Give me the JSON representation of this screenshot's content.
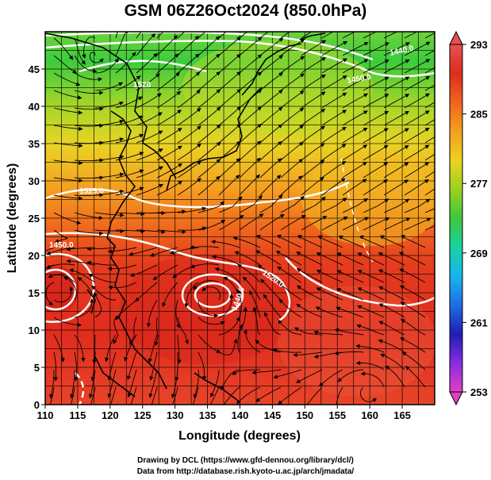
{
  "title": "GSM 06Z26Oct2024 (850.0hPa)",
  "credits": {
    "line1": "Drawing by DCL (https://www.gfd-dennou.org/library/dcl/)",
    "line2": "Data from http://database.rish.kyoto-u.ac.jp/arch/jmadata/"
  },
  "chart_data": {
    "type": "heatmap",
    "xlabel": "Longitude (degrees)",
    "ylabel": "Latitude  (degrees)",
    "xlim": [
      110,
      170
    ],
    "ylim": [
      0,
      50
    ],
    "x_ticks": [
      110,
      115,
      120,
      125,
      130,
      135,
      140,
      145,
      150,
      155,
      160,
      165
    ],
    "y_ticks": [
      0,
      5,
      10,
      15,
      20,
      25,
      30,
      35,
      40,
      45
    ],
    "colorbar": {
      "ticks": [
        253,
        261,
        269,
        277,
        285,
        293
      ],
      "range": [
        253,
        293
      ],
      "colors": [
        "#e040c0",
        "#8a2be2",
        "#1e1eb4",
        "#1e6ee6",
        "#19b4f0",
        "#19d2a0",
        "#3cc83c",
        "#9bd21e",
        "#ebd223",
        "#f5a01e",
        "#f0641e",
        "#dc2d1e",
        "#e65050"
      ]
    },
    "contour_labels": [
      "1440.0",
      "1450.0",
      "1520",
      "1525.0",
      "1520.0",
      "1440.0",
      "1450.0"
    ],
    "grid": true
  }
}
